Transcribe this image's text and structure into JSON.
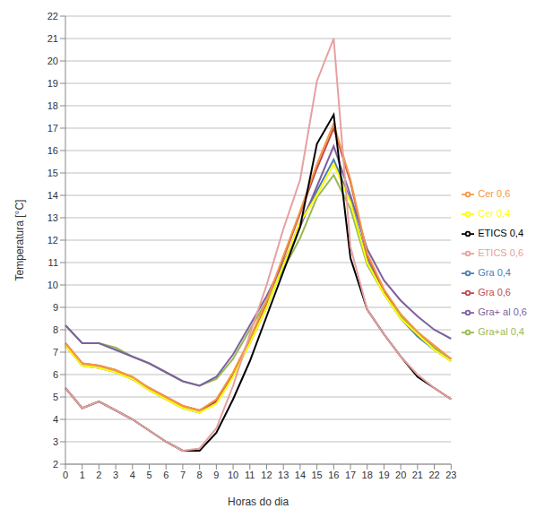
{
  "chart_data": {
    "type": "line",
    "x_label": "Horas do dia",
    "y_label": "Temperatura [°C]",
    "categories": [
      "0",
      "1",
      "2",
      "3",
      "4",
      "5",
      "6",
      "7",
      "8",
      "9",
      "10",
      "11",
      "12",
      "13",
      "14",
      "15",
      "16",
      "17",
      "18",
      "19",
      "20",
      "21",
      "22",
      "23"
    ],
    "ylim": [
      2,
      22
    ],
    "yticks": [
      2,
      3,
      4,
      5,
      6,
      7,
      8,
      9,
      10,
      11,
      12,
      13,
      14,
      15,
      16,
      17,
      18,
      19,
      20,
      21,
      22
    ],
    "grid": true,
    "legend": "right",
    "series": [
      {
        "name": "Gra 0,4",
        "color": "#4a7ebb",
        "values": [
          7.3,
          6.4,
          6.3,
          6.1,
          5.8,
          5.3,
          4.9,
          4.5,
          4.3,
          4.8,
          6.0,
          7.4,
          9.0,
          10.9,
          12.8,
          14.2,
          15.6,
          13.8,
          11.1,
          9.6,
          8.5,
          7.7,
          7.1,
          6.6
        ]
      },
      {
        "name": "Gra 0,6",
        "color": "#be4b48",
        "values": [
          7.4,
          6.5,
          6.4,
          6.2,
          5.8,
          5.4,
          5.0,
          4.6,
          4.4,
          4.8,
          6.0,
          7.5,
          9.2,
          11.2,
          13.2,
          15.2,
          17.0,
          14.6,
          11.3,
          9.7,
          8.6,
          7.9,
          7.2,
          6.7
        ]
      },
      {
        "name": "Gra+al 0,4",
        "color": "#98b954",
        "values": [
          8.2,
          7.4,
          7.4,
          7.2,
          6.8,
          6.5,
          6.1,
          5.7,
          5.5,
          5.8,
          6.7,
          8.0,
          9.3,
          10.7,
          12.1,
          13.9,
          14.9,
          13.4,
          10.9,
          9.6,
          8.6,
          7.8,
          7.2,
          6.7
        ]
      },
      {
        "name": "Gra+ al 0,6",
        "color": "#7d60a0",
        "values": [
          8.2,
          7.4,
          7.4,
          7.1,
          6.8,
          6.5,
          6.1,
          5.7,
          5.5,
          5.9,
          6.9,
          8.2,
          9.5,
          11.0,
          12.6,
          14.4,
          16.2,
          14.0,
          11.6,
          10.2,
          9.3,
          8.6,
          8.0,
          7.6
        ]
      },
      {
        "name": "Cer 0,4",
        "color": "#ffff00",
        "values": [
          7.3,
          6.4,
          6.3,
          6.1,
          5.8,
          5.3,
          4.9,
          4.5,
          4.3,
          4.7,
          5.9,
          7.4,
          9.0,
          10.9,
          12.8,
          14.0,
          15.4,
          13.7,
          11.0,
          9.6,
          8.5,
          7.8,
          7.1,
          6.6
        ]
      },
      {
        "name": "Cer  0,6",
        "color": "#f79646",
        "values": [
          7.4,
          6.5,
          6.4,
          6.2,
          5.9,
          5.4,
          5.0,
          4.6,
          4.4,
          4.9,
          6.1,
          7.6,
          9.3,
          11.3,
          13.3,
          15.4,
          17.2,
          14.7,
          11.4,
          9.8,
          8.7,
          7.9,
          7.3,
          6.7
        ]
      },
      {
        "name": "ETICS 0,4",
        "color": "#000000",
        "values": [
          5.4,
          4.5,
          4.8,
          4.4,
          4.0,
          3.5,
          3.0,
          2.6,
          2.6,
          3.4,
          4.9,
          6.6,
          8.6,
          10.6,
          12.6,
          16.3,
          17.6,
          11.2,
          8.9,
          7.8,
          6.8,
          5.9,
          5.4,
          4.9
        ]
      },
      {
        "name": "ETICS 0,6",
        "color": "#e6a0a0",
        "values": [
          5.4,
          4.5,
          4.8,
          4.4,
          4.0,
          3.5,
          3.0,
          2.6,
          2.7,
          3.6,
          5.5,
          7.8,
          10.0,
          12.5,
          14.7,
          19.1,
          21.0,
          11.7,
          8.9,
          7.8,
          6.8,
          6.0,
          5.4,
          4.9
        ]
      }
    ]
  }
}
